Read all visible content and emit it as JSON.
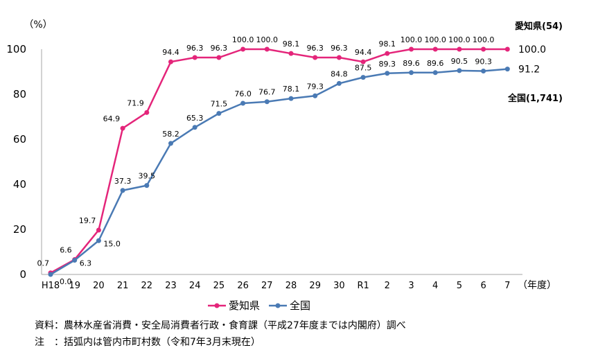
{
  "chart_data": {
    "type": "line",
    "unit_label": "（%）",
    "x_unit_label": "（年度）",
    "categories": [
      "H18",
      "19",
      "20",
      "21",
      "22",
      "23",
      "24",
      "25",
      "26",
      "27",
      "28",
      "29",
      "30",
      "R1",
      "2",
      "3",
      "4",
      "5",
      "6",
      "7"
    ],
    "ylim": [
      0,
      100
    ],
    "yticks": [
      0,
      20,
      40,
      60,
      80,
      100
    ],
    "grid": false,
    "legend_position": "bottom",
    "series": [
      {
        "name": "愛知県",
        "color": "#e4257a",
        "end_label": "100.0",
        "end_name": "愛知県(54)",
        "values": [
          0.7,
          6.6,
          19.7,
          64.9,
          71.9,
          94.4,
          96.3,
          96.3,
          100.0,
          100.0,
          98.1,
          96.3,
          96.3,
          94.4,
          98.1,
          100.0,
          100.0,
          100.0,
          100.0,
          100.0
        ],
        "labels": [
          "0.7",
          "6.6",
          "19.7",
          "64.9",
          "71.9",
          "94.4",
          "96.3",
          "96.3",
          "100.0",
          "100.0",
          "98.1",
          "96.3",
          "96.3",
          "94.4",
          "98.1",
          "100.0",
          "100.0",
          "100.0",
          "100.0",
          ""
        ]
      },
      {
        "name": "全国",
        "color": "#4a7ab4",
        "end_label": "91.2",
        "end_name": "全国(1,741)",
        "values": [
          0.0,
          6.3,
          15.0,
          37.3,
          39.5,
          58.2,
          65.3,
          71.5,
          76.0,
          76.7,
          78.1,
          79.3,
          84.8,
          87.5,
          89.3,
          89.6,
          89.6,
          90.5,
          90.3,
          91.2
        ],
        "labels": [
          "0.0",
          "6.3",
          "15.0",
          "37.3",
          "39.5",
          "58.2",
          "65.3",
          "71.5",
          "76.0",
          "76.7",
          "78.1",
          "79.3",
          "84.8",
          "87.5",
          "89.3",
          "89.6",
          "89.6",
          "90.5",
          "90.3",
          ""
        ]
      }
    ]
  },
  "notes": {
    "source": "資料：農林水産省消費・安全局消費者行政・食育課（平成27年度までは内閣府）調べ",
    "note": "注　：括弧内は管内市町村数（令和7年3月末現在）"
  }
}
